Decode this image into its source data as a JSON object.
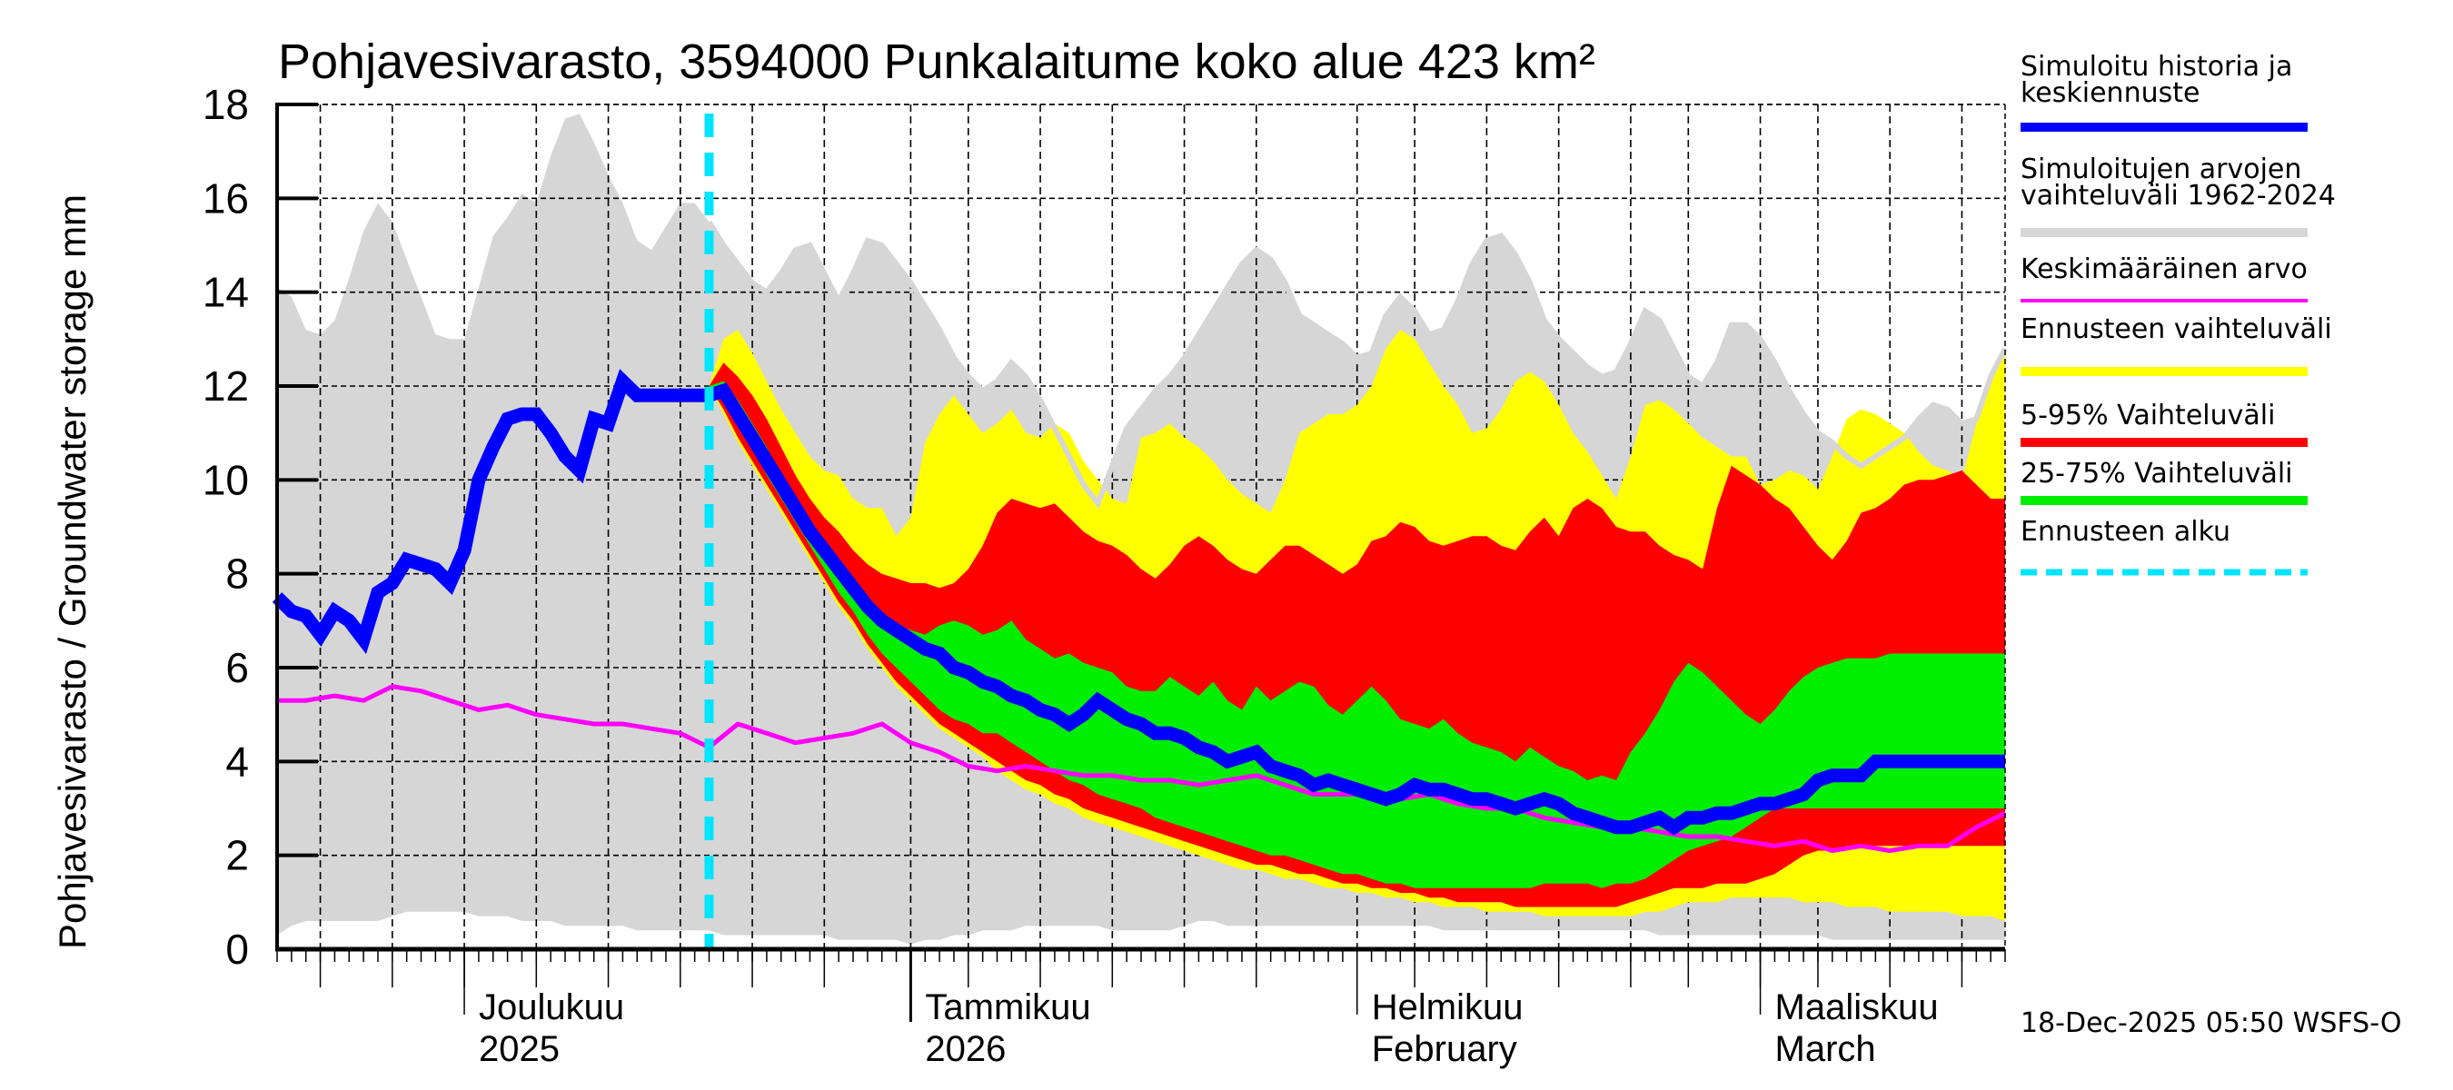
{
  "chart_data": {
    "type": "area",
    "title": "Pohjavesivarasto, 3594000 Punkalaitume koko alue 423 km²",
    "ylabel": "Pohjavesivarasto / Groundwater storage   mm",
    "ylim": [
      0,
      18
    ],
    "yticks": [
      "0",
      "2",
      "4",
      "6",
      "8",
      "10",
      "12",
      "14",
      "16",
      "18"
    ],
    "x_domain_days": [
      0,
      120
    ],
    "x_start_date": "2025-11-18",
    "grid": true,
    "months": [
      {
        "day": 13,
        "line1": "Joulukuu",
        "line2": "2025"
      },
      {
        "day": 44,
        "line1": "Tammikuu",
        "line2": "2026"
      },
      {
        "day": 75,
        "line1": "Helmikuu",
        "line2": "February"
      },
      {
        "day": 103,
        "line1": "Maaliskuu",
        "line2": "March"
      }
    ],
    "forecast_start_day": 30,
    "colors": {
      "history": "#0000ff",
      "range_hist": "#d6d6d6",
      "mean": "#ff00ff",
      "forecast_range": "#ffff00",
      "p5_95": "#ff0000",
      "p25_75": "#00ee00",
      "forecast_start": "#00e5ff"
    },
    "hist_range": {
      "x": [
        0,
        1,
        2,
        3,
        4,
        5,
        6,
        7,
        8,
        9,
        10,
        11,
        12,
        13,
        14,
        15,
        16,
        17,
        18,
        19,
        20,
        21,
        22,
        23,
        24,
        25,
        26,
        27,
        28,
        29,
        30,
        31,
        32,
        33,
        34,
        35,
        36,
        37,
        38,
        39,
        40,
        41,
        42,
        43,
        44,
        45,
        46,
        47,
        48,
        49,
        50,
        51,
        52,
        53,
        54,
        55,
        56,
        57,
        58,
        59,
        60,
        61,
        62,
        63,
        64,
        65,
        66,
        67,
        68,
        69,
        70,
        71,
        72,
        73,
        74,
        75,
        76,
        77,
        78,
        79,
        80,
        81,
        82,
        83,
        84,
        85,
        86,
        87,
        88,
        89,
        90,
        91,
        92,
        93,
        94,
        95,
        96,
        97,
        98,
        99,
        100,
        101,
        102,
        103,
        104,
        105,
        106,
        107,
        108,
        109,
        110,
        111,
        112,
        113,
        114,
        115,
        116,
        117,
        118,
        119,
        120
      ],
      "upper": [
        14.1,
        13.9,
        13.2,
        13.1,
        13.4,
        14.3,
        15.3,
        15.9,
        15.5,
        14.7,
        13.9,
        13.1,
        13.0,
        13.0,
        14.1,
        15.2,
        15.6,
        16.1,
        15.9,
        16.9,
        17.7,
        17.8,
        17.2,
        16.5,
        15.9,
        15.1,
        14.9,
        15.4,
        15.9,
        15.9,
        15.5,
        15.0,
        14.6,
        14.2,
        14.0,
        14.4,
        14.9,
        15.0,
        14.4,
        13.8,
        14.4,
        15.1,
        15.0,
        14.6,
        14.2,
        13.7,
        13.2,
        12.6,
        12.2,
        11.9,
        12.1,
        12.5,
        12.2,
        11.7,
        11.1,
        10.5,
        9.9,
        9.5,
        10.3,
        11.1,
        11.5,
        11.9,
        12.2,
        12.6,
        13.1,
        13.6,
        14.1,
        14.6,
        14.9,
        14.7,
        14.2,
        13.5,
        13.3,
        13.1,
        12.9,
        12.6,
        12.7,
        13.5,
        13.9,
        13.6,
        13.1,
        13.2,
        13.8,
        14.6,
        15.1,
        15.2,
        14.8,
        14.2,
        13.4,
        13.0,
        12.7,
        12.4,
        12.2,
        12.3,
        12.9,
        13.6,
        13.4,
        12.8,
        12.2,
        12.0,
        12.5,
        13.3,
        13.3,
        13.0,
        12.5,
        11.9,
        11.4,
        11.0,
        10.8,
        10.5,
        10.3,
        10.5,
        10.7,
        10.9,
        11.3,
        11.6,
        11.5,
        11.2,
        11.3,
        12.2,
        12.8
      ],
      "lower": [
        0.3,
        0.5,
        0.6,
        0.6,
        0.6,
        0.6,
        0.6,
        0.6,
        0.7,
        0.8,
        0.8,
        0.8,
        0.8,
        0.8,
        0.7,
        0.7,
        0.7,
        0.6,
        0.6,
        0.6,
        0.5,
        0.5,
        0.5,
        0.5,
        0.5,
        0.4,
        0.4,
        0.4,
        0.4,
        0.4,
        0.4,
        0.3,
        0.3,
        0.3,
        0.3,
        0.3,
        0.3,
        0.3,
        0.3,
        0.2,
        0.2,
        0.2,
        0.2,
        0.2,
        0.1,
        0.2,
        0.2,
        0.3,
        0.3,
        0.4,
        0.4,
        0.4,
        0.5,
        0.5,
        0.5,
        0.5,
        0.5,
        0.5,
        0.4,
        0.4,
        0.4,
        0.4,
        0.4,
        0.5,
        0.6,
        0.6,
        0.5,
        0.5,
        0.5,
        0.5,
        0.5,
        0.5,
        0.5,
        0.5,
        0.5,
        0.5,
        0.5,
        0.5,
        0.5,
        0.5,
        0.5,
        0.4,
        0.4,
        0.4,
        0.4,
        0.4,
        0.4,
        0.4,
        0.4,
        0.4,
        0.4,
        0.4,
        0.4,
        0.4,
        0.4,
        0.4,
        0.3,
        0.3,
        0.3,
        0.3,
        0.3,
        0.3,
        0.3,
        0.3,
        0.3,
        0.3,
        0.3,
        0.3,
        0.2,
        0.2,
        0.2,
        0.2,
        0.2,
        0.2,
        0.2,
        0.2,
        0.2,
        0.2,
        0.2,
        0.2,
        0.2
      ]
    },
    "forecast": {
      "x": [
        30,
        31,
        32,
        33,
        34,
        35,
        36,
        37,
        38,
        39,
        40,
        41,
        42,
        43,
        44,
        45,
        46,
        47,
        48,
        49,
        50,
        51,
        52,
        53,
        54,
        55,
        56,
        57,
        58,
        59,
        60,
        61,
        62,
        63,
        64,
        65,
        66,
        67,
        68,
        69,
        70,
        71,
        72,
        73,
        74,
        75,
        76,
        77,
        78,
        79,
        80,
        81,
        82,
        83,
        84,
        85,
        86,
        87,
        88,
        89,
        90,
        91,
        92,
        93,
        94,
        95,
        96,
        97,
        98,
        99,
        100,
        101,
        102,
        103,
        104,
        105,
        106,
        107,
        108,
        109,
        110,
        111,
        112,
        113,
        114,
        115,
        116,
        117,
        118,
        119,
        120
      ],
      "max": [
        12.0,
        13.0,
        13.2,
        12.7,
        12.1,
        11.5,
        11.0,
        10.5,
        10.2,
        10.1,
        9.6,
        9.4,
        9.4,
        8.8,
        9.2,
        10.8,
        11.4,
        11.8,
        11.4,
        11.0,
        11.2,
        11.5,
        11.0,
        10.9,
        11.2,
        11.0,
        10.4,
        10.0,
        9.6,
        9.5,
        10.9,
        11.0,
        11.2,
        10.9,
        10.7,
        10.4,
        10.0,
        9.7,
        9.5,
        9.3,
        10.0,
        11.0,
        11.2,
        11.4,
        11.4,
        11.6,
        12.0,
        12.8,
        13.2,
        13.0,
        12.5,
        12.0,
        11.6,
        11.0,
        11.1,
        11.5,
        12.1,
        12.3,
        12.1,
        11.6,
        11.0,
        10.6,
        10.1,
        9.6,
        10.5,
        11.6,
        11.7,
        11.5,
        11.2,
        10.9,
        10.7,
        10.5,
        10.5,
        9.9,
        10.0,
        10.2,
        10.1,
        9.8,
        10.5,
        11.3,
        11.5,
        11.4,
        11.2,
        11.0,
        10.6,
        10.3,
        10.2,
        10.0,
        11.2,
        12.2,
        12.7
      ],
      "p95": [
        12.0,
        12.5,
        12.2,
        11.8,
        11.3,
        10.7,
        10.1,
        9.6,
        9.2,
        8.9,
        8.5,
        8.2,
        8.0,
        7.9,
        7.8,
        7.8,
        7.7,
        7.8,
        8.1,
        8.6,
        9.3,
        9.6,
        9.5,
        9.4,
        9.5,
        9.2,
        8.9,
        8.7,
        8.6,
        8.4,
        8.1,
        7.9,
        8.2,
        8.6,
        8.8,
        8.6,
        8.3,
        8.1,
        8.0,
        8.3,
        8.6,
        8.6,
        8.4,
        8.2,
        8.0,
        8.2,
        8.7,
        8.8,
        9.1,
        9.0,
        8.7,
        8.6,
        8.7,
        8.8,
        8.8,
        8.6,
        8.5,
        8.9,
        9.2,
        8.8,
        9.4,
        9.6,
        9.4,
        9.0,
        8.9,
        8.9,
        8.6,
        8.4,
        8.3,
        8.1,
        9.4,
        10.3,
        10.1,
        9.9,
        9.6,
        9.4,
        9.0,
        8.6,
        8.3,
        8.7,
        9.3,
        9.4,
        9.6,
        9.9,
        10.0,
        10.0,
        10.1,
        10.2,
        9.9,
        9.6,
        9.6
      ],
      "p75": [
        12.0,
        12.1,
        11.7,
        11.2,
        10.7,
        10.1,
        9.6,
        9.1,
        8.6,
        8.2,
        7.8,
        7.4,
        7.1,
        6.9,
        6.8,
        6.7,
        6.9,
        7.0,
        6.9,
        6.7,
        6.8,
        7.0,
        6.6,
        6.4,
        6.2,
        6.3,
        6.1,
        6.0,
        5.9,
        5.6,
        5.5,
        5.5,
        5.8,
        5.6,
        5.4,
        5.7,
        5.3,
        5.1,
        5.6,
        5.3,
        5.5,
        5.7,
        5.6,
        5.2,
        5.0,
        5.3,
        5.6,
        5.3,
        4.9,
        4.8,
        4.7,
        4.9,
        4.6,
        4.4,
        4.3,
        4.2,
        4.0,
        4.3,
        4.1,
        3.9,
        3.8,
        3.6,
        3.7,
        3.6,
        4.2,
        4.6,
        5.1,
        5.7,
        6.1,
        5.9,
        5.6,
        5.3,
        5.0,
        4.8,
        5.1,
        5.5,
        5.8,
        6.0,
        6.1,
        6.2,
        6.2,
        6.2,
        6.3,
        6.3,
        6.3,
        6.3,
        6.3,
        6.3,
        6.3,
        6.3,
        6.3
      ],
      "median": [
        12.0,
        11.9,
        11.4,
        10.9,
        10.4,
        9.9,
        9.4,
        8.9,
        8.5,
        8.1,
        7.7,
        7.3,
        7.0,
        6.8,
        6.6,
        6.4,
        6.3,
        6.0,
        5.9,
        5.7,
        5.6,
        5.4,
        5.3,
        5.1,
        5.0,
        4.8,
        5.0,
        5.3,
        5.1,
        4.9,
        4.8,
        4.6,
        4.6,
        4.5,
        4.3,
        4.2,
        4.0,
        4.1,
        4.2,
        3.9,
        3.8,
        3.7,
        3.5,
        3.6,
        3.5,
        3.4,
        3.3,
        3.2,
        3.3,
        3.5,
        3.4,
        3.4,
        3.3,
        3.2,
        3.2,
        3.1,
        3.0,
        3.1,
        3.2,
        3.1,
        2.9,
        2.8,
        2.7,
        2.6,
        2.6,
        2.7,
        2.8,
        2.6,
        2.8,
        2.8,
        2.9,
        2.9,
        3.0,
        3.1,
        3.1,
        3.2,
        3.3,
        3.6,
        3.7,
        3.7,
        3.7,
        4.0,
        4.0,
        4.0,
        4.0,
        4.0,
        4.0,
        4.0,
        4.0,
        4.0,
        4.0
      ],
      "p25": [
        12.0,
        11.7,
        11.2,
        10.7,
        10.1,
        9.6,
        9.1,
        8.6,
        8.1,
        7.6,
        7.2,
        6.7,
        6.3,
        6.0,
        5.7,
        5.4,
        5.1,
        4.9,
        4.8,
        4.6,
        4.6,
        4.4,
        4.2,
        4.0,
        3.8,
        3.6,
        3.5,
        3.3,
        3.2,
        3.1,
        3.0,
        2.8,
        2.7,
        2.6,
        2.5,
        2.4,
        2.3,
        2.2,
        2.1,
        2.0,
        2.0,
        1.9,
        1.8,
        1.7,
        1.6,
        1.6,
        1.5,
        1.4,
        1.4,
        1.3,
        1.3,
        1.3,
        1.3,
        1.3,
        1.3,
        1.3,
        1.3,
        1.3,
        1.4,
        1.4,
        1.4,
        1.4,
        1.3,
        1.4,
        1.4,
        1.5,
        1.7,
        1.9,
        2.1,
        2.2,
        2.3,
        2.4,
        2.6,
        2.8,
        3.0,
        3.0,
        3.0,
        3.0,
        3.0,
        3.0,
        3.0,
        3.0,
        3.0,
        3.0,
        3.0,
        3.0,
        3.0,
        3.0,
        3.0,
        3.0,
        3.0
      ],
      "p5": [
        12.0,
        11.5,
        10.9,
        10.4,
        9.9,
        9.4,
        8.9,
        8.4,
        7.9,
        7.4,
        7.0,
        6.5,
        6.1,
        5.7,
        5.4,
        5.1,
        4.8,
        4.6,
        4.4,
        4.2,
        4.0,
        3.8,
        3.6,
        3.5,
        3.3,
        3.2,
        3.0,
        2.9,
        2.8,
        2.7,
        2.6,
        2.5,
        2.4,
        2.3,
        2.2,
        2.1,
        2.0,
        1.9,
        1.8,
        1.8,
        1.7,
        1.6,
        1.6,
        1.5,
        1.4,
        1.4,
        1.3,
        1.3,
        1.2,
        1.2,
        1.1,
        1.1,
        1.0,
        1.0,
        1.0,
        1.0,
        0.9,
        0.9,
        0.9,
        0.9,
        0.9,
        0.9,
        0.9,
        0.9,
        1.0,
        1.1,
        1.2,
        1.3,
        1.3,
        1.3,
        1.4,
        1.4,
        1.4,
        1.5,
        1.6,
        1.8,
        2.0,
        2.1,
        2.1,
        2.2,
        2.2,
        2.2,
        2.2,
        2.2,
        2.2,
        2.2,
        2.2,
        2.2,
        2.2,
        2.2,
        2.2
      ],
      "min": [
        12.0,
        11.4,
        10.8,
        10.3,
        9.8,
        9.3,
        8.8,
        8.3,
        7.8,
        7.3,
        6.9,
        6.4,
        6.0,
        5.6,
        5.3,
        5.0,
        4.7,
        4.5,
        4.3,
        4.1,
        3.8,
        3.6,
        3.4,
        3.3,
        3.1,
        3.0,
        2.8,
        2.7,
        2.6,
        2.5,
        2.4,
        2.3,
        2.2,
        2.1,
        2.0,
        1.9,
        1.8,
        1.7,
        1.7,
        1.6,
        1.5,
        1.5,
        1.4,
        1.3,
        1.3,
        1.2,
        1.2,
        1.1,
        1.1,
        1.0,
        1.0,
        0.9,
        0.9,
        0.9,
        0.8,
        0.8,
        0.8,
        0.8,
        0.7,
        0.7,
        0.7,
        0.7,
        0.7,
        0.7,
        0.7,
        0.8,
        0.8,
        0.9,
        1.0,
        1.0,
        1.0,
        1.1,
        1.1,
        1.1,
        1.1,
        1.1,
        1.0,
        1.0,
        1.0,
        0.9,
        0.9,
        0.9,
        0.8,
        0.8,
        0.8,
        0.8,
        0.8,
        0.7,
        0.7,
        0.7,
        0.6
      ]
    },
    "history": {
      "x": [
        0,
        1,
        2,
        3,
        4,
        5,
        6,
        7,
        8,
        9,
        10,
        11,
        12,
        13,
        14,
        15,
        16,
        17,
        18,
        19,
        20,
        21,
        22,
        23,
        24,
        25,
        26,
        27,
        28,
        29,
        30
      ],
      "y": [
        7.5,
        7.2,
        7.1,
        6.7,
        7.2,
        7.0,
        6.6,
        7.6,
        7.8,
        8.3,
        8.2,
        8.1,
        7.8,
        8.5,
        10.0,
        10.7,
        11.3,
        11.4,
        11.4,
        11.0,
        10.5,
        10.2,
        11.3,
        11.2,
        12.1,
        11.8,
        11.8,
        11.8,
        11.8,
        11.8,
        11.8
      ]
    },
    "mean": {
      "x": [
        0,
        2,
        4,
        6,
        8,
        10,
        12,
        14,
        16,
        18,
        20,
        22,
        24,
        26,
        28,
        30,
        32,
        34,
        36,
        38,
        40,
        42,
        44,
        46,
        48,
        50,
        52,
        54,
        56,
        58,
        60,
        62,
        64,
        66,
        68,
        70,
        72,
        74,
        76,
        78,
        80,
        82,
        84,
        86,
        88,
        90,
        92,
        94,
        96,
        98,
        100,
        102,
        104,
        106,
        108,
        110,
        112,
        114,
        116,
        118,
        120
      ],
      "y": [
        5.3,
        5.3,
        5.4,
        5.3,
        5.6,
        5.5,
        5.3,
        5.1,
        5.2,
        5.0,
        4.9,
        4.8,
        4.8,
        4.7,
        4.6,
        4.3,
        4.8,
        4.6,
        4.4,
        4.5,
        4.6,
        4.8,
        4.4,
        4.2,
        3.9,
        3.8,
        3.9,
        3.8,
        3.7,
        3.7,
        3.6,
        3.6,
        3.5,
        3.6,
        3.7,
        3.5,
        3.3,
        3.3,
        3.3,
        3.2,
        3.3,
        3.1,
        3.0,
        3.0,
        2.8,
        2.7,
        2.6,
        2.6,
        2.5,
        2.4,
        2.4,
        2.3,
        2.2,
        2.3,
        2.1,
        2.2,
        2.1,
        2.2,
        2.2,
        2.6,
        2.9
      ]
    },
    "legend": [
      {
        "label1": "Simuloitu historia ja",
        "label2": "keskiennuste",
        "style": "history"
      },
      {
        "label1": "Simuloitujen arvojen",
        "label2": "vaihteluväli 1962-2024",
        "style": "range_hist"
      },
      {
        "label1": "Keskimääräinen arvo",
        "label2": "",
        "style": "mean"
      },
      {
        "label1": "Ennusteen vaihteluväli",
        "label2": "",
        "style": "forecast_range"
      },
      {
        "label1": "5-95% Vaihteluväli",
        "label2": "",
        "style": "p5_95"
      },
      {
        "label1": "25-75% Vaihteluväli",
        "label2": "",
        "style": "p25_75"
      },
      {
        "label1": "Ennusteen alku",
        "label2": "",
        "style": "forecast_start"
      }
    ],
    "legend_position": "right",
    "timestamp": "18-Dec-2025 05:50 WSFS-O"
  }
}
